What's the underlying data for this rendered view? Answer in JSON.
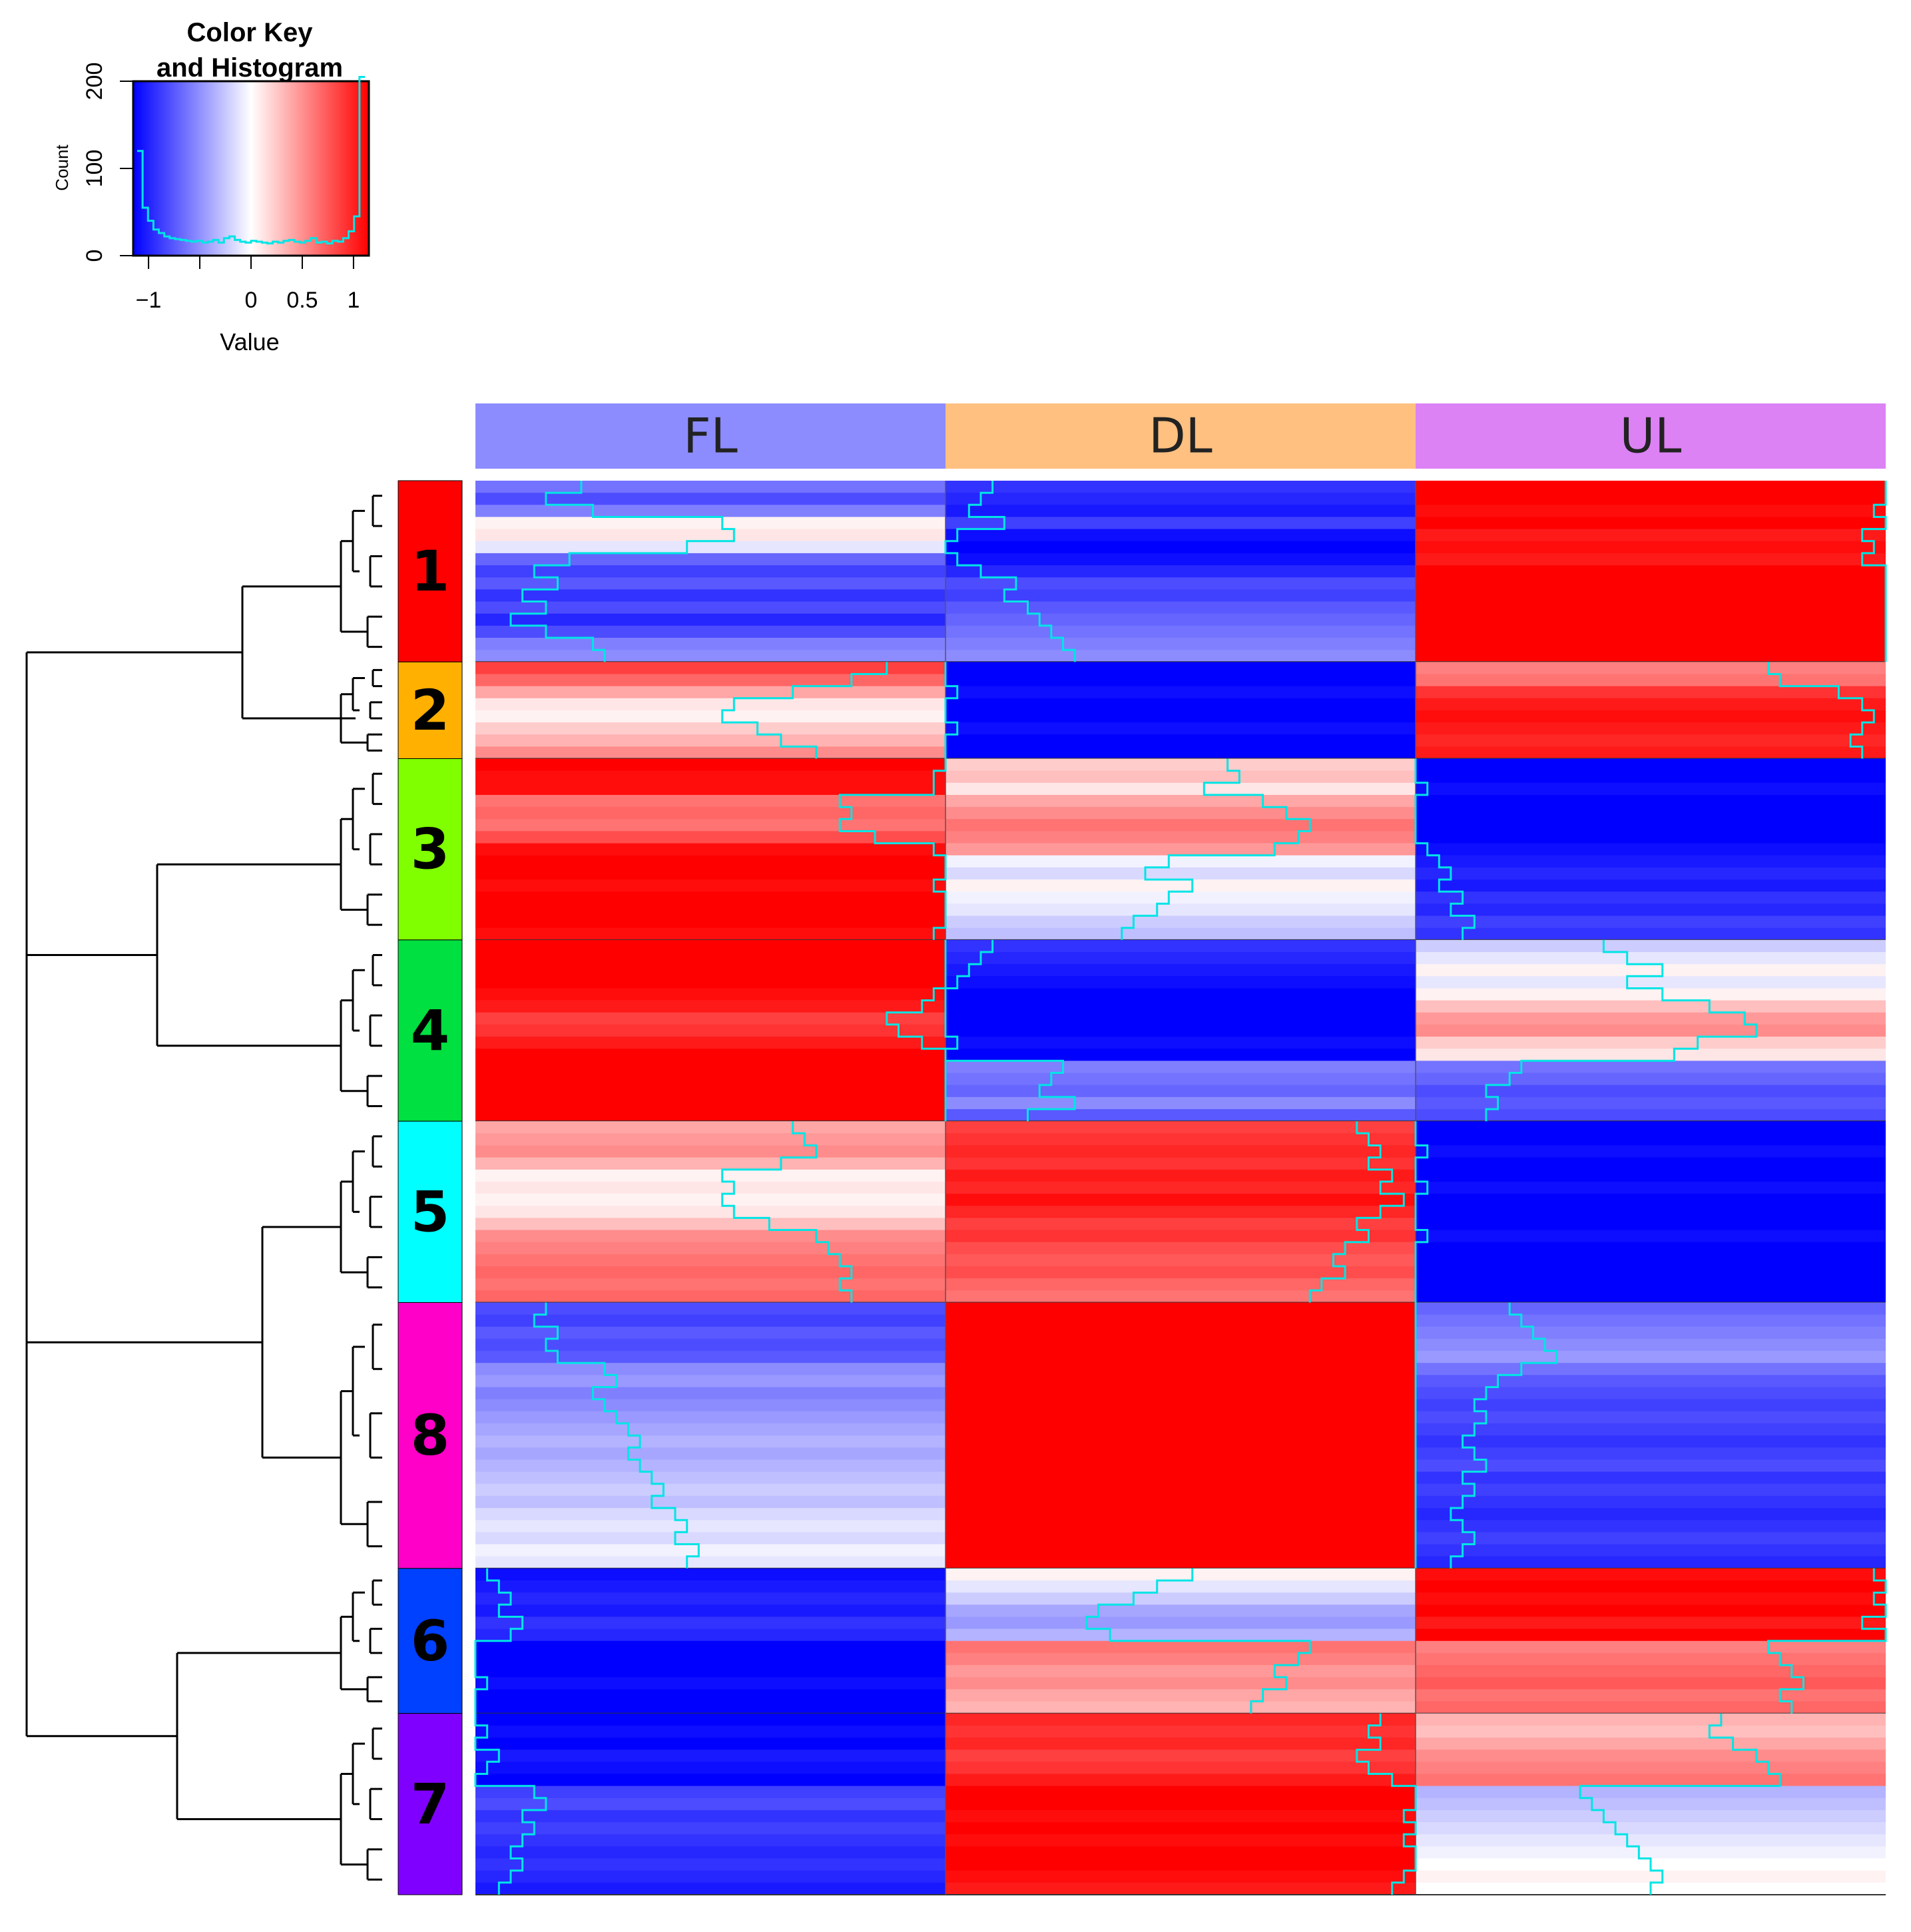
{
  "chart_data": {
    "type": "heatmap",
    "color_key": {
      "title_line1": "Color Key",
      "title_line2": "and Histogram",
      "xlabel": "Value",
      "ylabel": "Count",
      "xticks": [
        -1,
        0,
        0.5,
        1
      ],
      "xtick_labels": [
        "−1",
        "0",
        "0.5",
        "1"
      ],
      "yticks": [
        0,
        100,
        200
      ],
      "ytick_labels": [
        "0",
        "100",
        "200"
      ],
      "xlim": [
        -1.15,
        1.15
      ],
      "ylim": [
        0,
        200
      ],
      "colors": {
        "low": "#0000ff",
        "mid": "#ffffff",
        "high": "#ff0000",
        "trace": "#00e5e5"
      },
      "histogram_counts": [
        120,
        55,
        40,
        30,
        26,
        22,
        20,
        19,
        18,
        17,
        16,
        17,
        15,
        16,
        18,
        15,
        20,
        22,
        18,
        16,
        15,
        17,
        16,
        15,
        14,
        16,
        15,
        17,
        18,
        16,
        15,
        17,
        20,
        15,
        16,
        14,
        17,
        16,
        20,
        28,
        45,
        205
      ]
    },
    "columns": [
      {
        "label": "FL",
        "color": "#8c8cff"
      },
      {
        "label": "DL",
        "color": "#ffc080"
      },
      {
        "label": "UL",
        "color": "#dc82f5"
      }
    ],
    "clusters": [
      {
        "label": "1",
        "color": "#ff0000",
        "rows": 15,
        "values": [
          -0.5,
          -0.7,
          0.05,
          -0.6,
          -0.75,
          -1.0,
          1.0
        ]
      },
      {
        "label": "2",
        "color": "#ffb000",
        "rows": 8,
        "values": [
          0.5,
          0.1,
          -1.0,
          -1.0,
          0.7,
          0.95
        ]
      },
      {
        "label": "3",
        "color": "#80ff00",
        "rows": 15,
        "values": [
          0.9,
          0.7,
          0.35,
          0.55,
          -0.05,
          -1.0,
          -0.8
        ]
      },
      {
        "label": "4",
        "color": "#00e040",
        "rows": 15,
        "values": [
          1.0,
          0.85,
          -1.0,
          -0.55,
          -0.1,
          0.45,
          -0.65
        ]
      },
      {
        "label": "5",
        "color": "#00ffff",
        "rows": 15,
        "values": [
          0.4,
          0.05,
          0.5,
          0.85,
          0.6,
          -1.0,
          -1.0
        ]
      },
      {
        "label": "8",
        "color": "#ff00c8",
        "rows": 22,
        "values": [
          -0.65,
          -0.4,
          -0.25,
          -0.1,
          1.0,
          1.0,
          -0.5,
          -0.75
        ]
      },
      {
        "label": "6",
        "color": "#0040ff",
        "rows": 12,
        "values": [
          -1.0,
          -0.85,
          -1.0,
          0.05,
          0.35,
          0.9,
          0.65
        ]
      },
      {
        "label": "7",
        "color": "#8000ff",
        "rows": 15,
        "values": [
          -1.0,
          -0.75,
          0.85,
          1.0,
          0.45,
          -0.3,
          0.0
        ]
      }
    ],
    "trace_color": "#00e5e5",
    "dendrogram": "hierarchical clustering of rows (left)"
  }
}
